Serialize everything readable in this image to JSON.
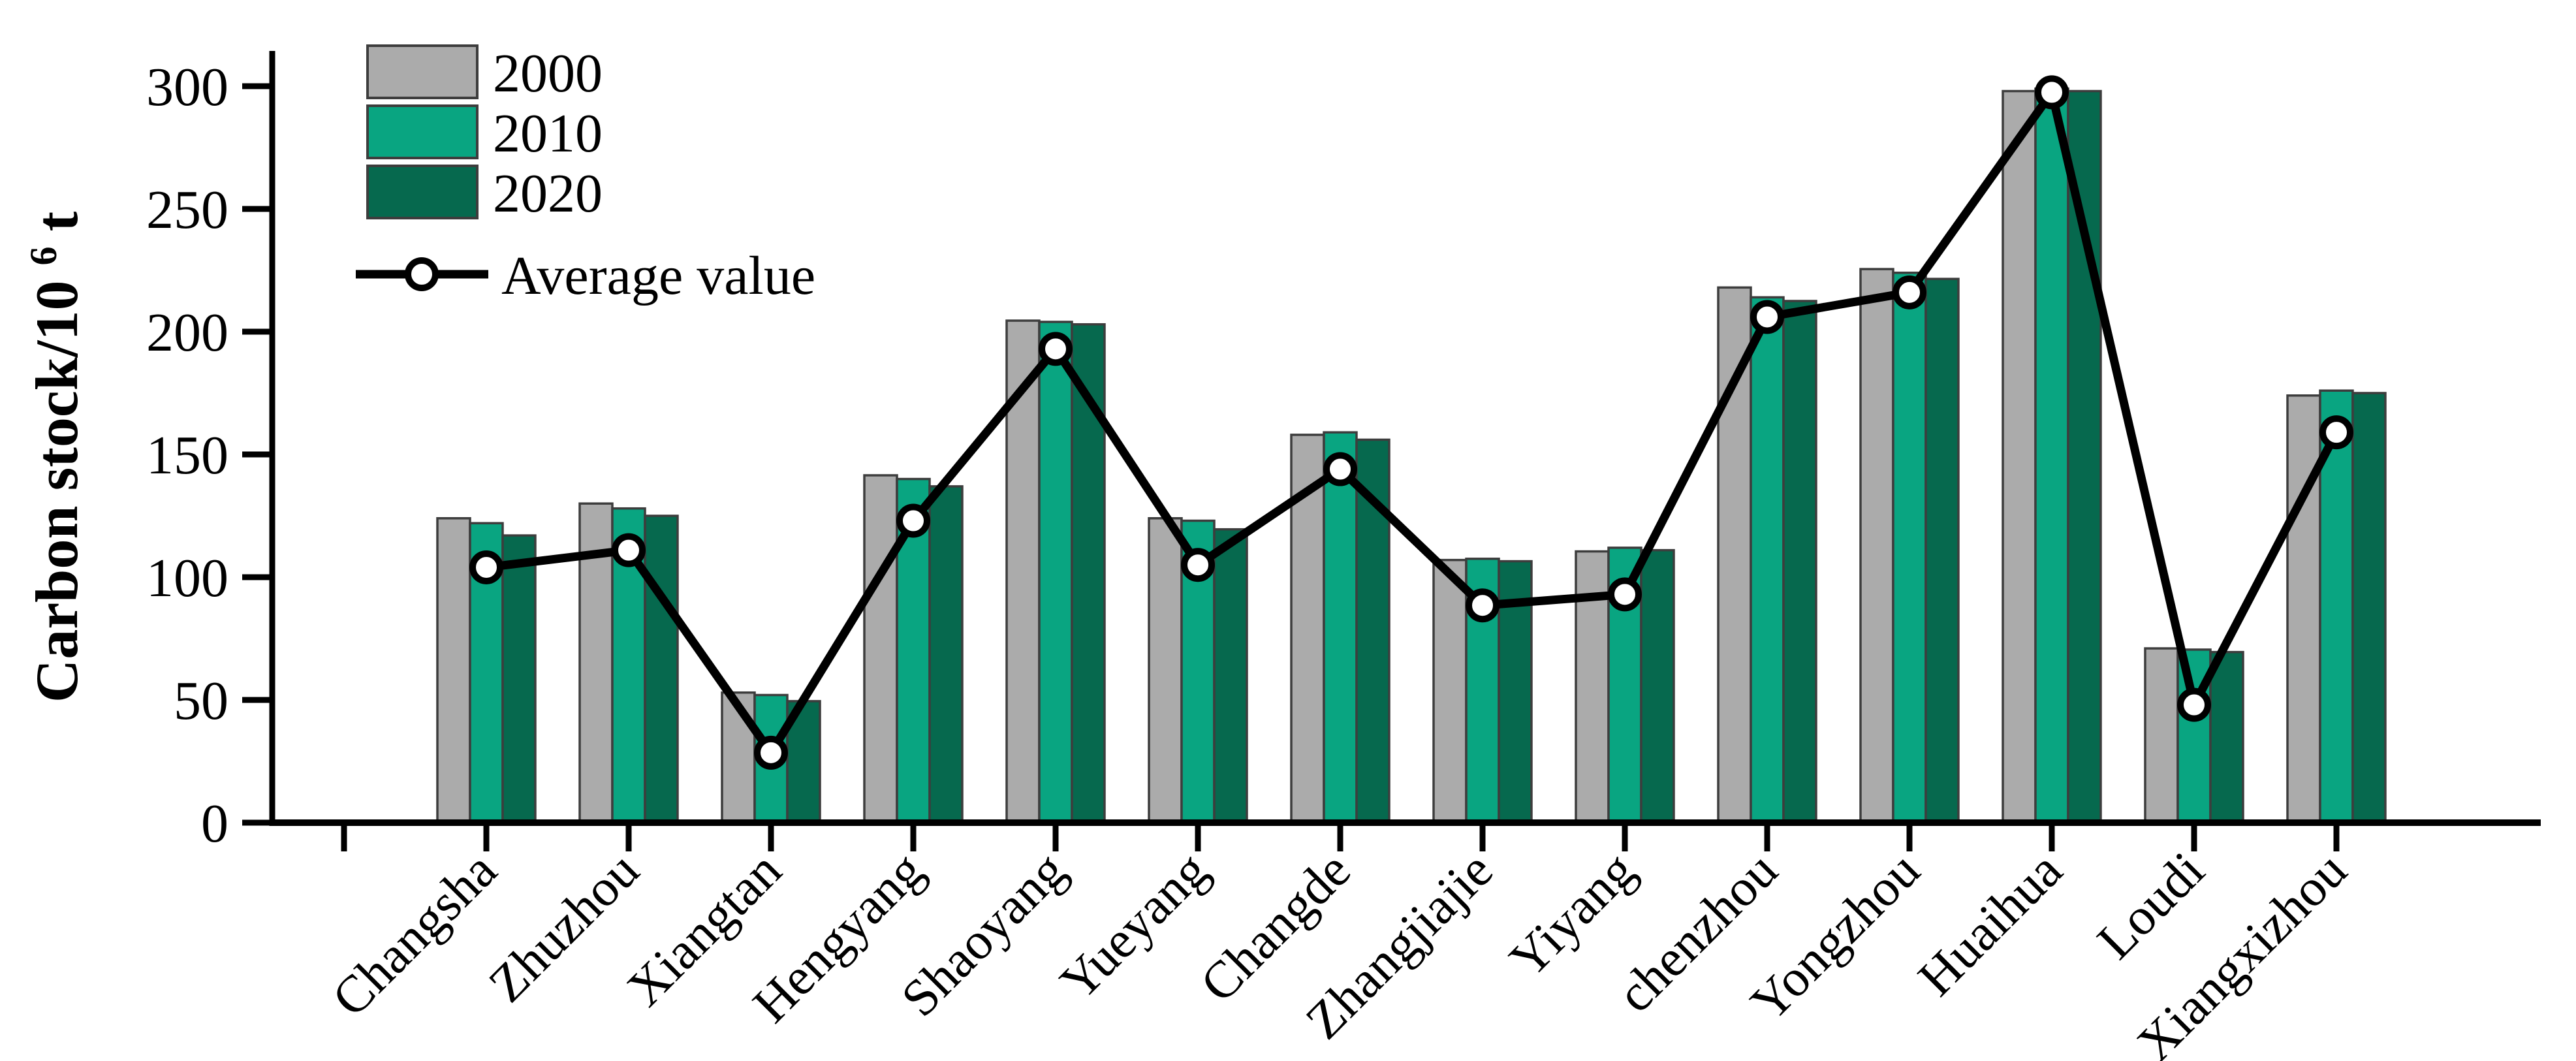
{
  "figure": {
    "y_axis": {
      "label_prefix": "Carbon stock/10",
      "label_sup": "6",
      "label_suffix": "t"
    },
    "legend": {
      "items": [
        "2000",
        "2010",
        "2020",
        "Average value"
      ]
    }
  },
  "chart_data": {
    "type": "bar",
    "title": "",
    "xlabel": "",
    "ylabel": "Carbon stock/10⁶t",
    "ylim": [
      0,
      314
    ],
    "yticks": [
      0,
      50,
      100,
      150,
      200,
      250,
      300
    ],
    "grid": false,
    "legend_position": "upper left",
    "categories": [
      "Changsha",
      "Zhuzhou",
      "Xiangtan",
      "Hengyang",
      "Shaoyang",
      "Yueyang",
      "Changde",
      "Zhangjiajie",
      "Yiyang",
      "chenzhou",
      "Yongzhou",
      "Huaihua",
      "Loudi",
      "Xiangxizhou"
    ],
    "series": [
      {
        "name": "2000",
        "color": "#ABABAB",
        "values": [
          124,
          130,
          53,
          141.5,
          204.5,
          124,
          158,
          107,
          110.5,
          218,
          225.5,
          298,
          71,
          174
        ]
      },
      {
        "name": "2010",
        "color": "#09A581",
        "values": [
          122,
          128,
          52,
          140,
          204,
          123,
          159,
          107.5,
          112,
          214,
          224,
          299,
          70.5,
          176
        ]
      },
      {
        "name": "2020",
        "color": "#06694E",
        "values": [
          117,
          125,
          49.5,
          137,
          203,
          119.5,
          156,
          106.5,
          111,
          212.5,
          221.5,
          298,
          69.5,
          175
        ]
      }
    ],
    "line_series": {
      "name": "Average value",
      "color": "#000000",
      "marker": "open-circle",
      "values": [
        104,
        111,
        28.5,
        123,
        193,
        105,
        144,
        88.5,
        93,
        206,
        216,
        297.5,
        48,
        159
      ]
    }
  }
}
